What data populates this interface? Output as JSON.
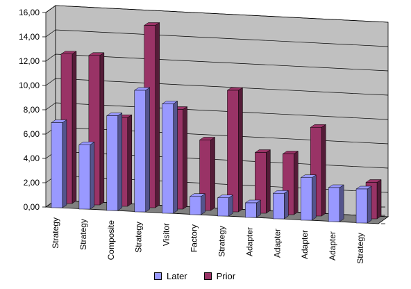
{
  "chart_data": {
    "type": "bar",
    "style": "3d-clustered-column",
    "categories": [
      "Strategy",
      "Strategy",
      "Composite",
      "Strategy",
      "Visitor",
      "Factory",
      "Strategy",
      "Adapter",
      "Adapter",
      "Adapter",
      "Adapter",
      "Strategy"
    ],
    "series": [
      {
        "name": "Later",
        "color": "#9999ff",
        "values": [
          7.0,
          5.3,
          7.8,
          10.0,
          9.0,
          1.5,
          1.5,
          1.2,
          2.1,
          3.5,
          2.8,
          2.8
        ]
      },
      {
        "name": "Prior",
        "color": "#993366",
        "values": [
          12.3,
          12.3,
          7.3,
          15.0,
          8.2,
          5.8,
          10.0,
          5.0,
          5.0,
          7.3,
          0.0,
          3.0
        ]
      }
    ],
    "y_tick_labels": [
      "0,00",
      "2,00",
      "4,00",
      "6,00",
      "8,00",
      "10,00",
      "12,00",
      "14,00",
      "16,00"
    ],
    "ylim": [
      0,
      16
    ],
    "grid": true,
    "legend_position": "bottom",
    "wall_color": "#c0c0c0",
    "floor_color": "#808080",
    "title": "",
    "xlabel": "",
    "ylabel": ""
  }
}
